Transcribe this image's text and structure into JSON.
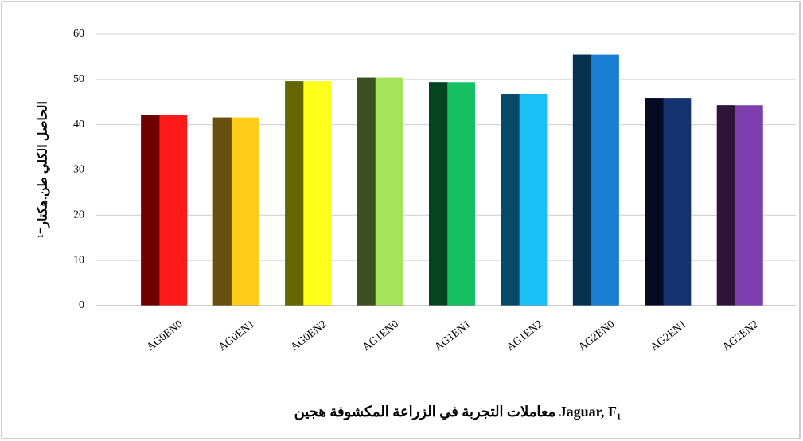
{
  "chart_data": {
    "type": "bar",
    "y_label": "الحاصل الكلي طن.هكتار⁻¹",
    "x_label": "معاملات التجربة في الزراعة المكشوفة هجين Jaguar, F₁",
    "categories": [
      "AG0EN0",
      "AG0EN1",
      "AG0EN2",
      "AG1EN0",
      "AG1EN1",
      "AG1EN2",
      "AG2EN0",
      "AG2EN1",
      "AG2EN2"
    ],
    "values": [
      42.1,
      41.6,
      49.6,
      50.4,
      49.4,
      46.8,
      55.5,
      45.9,
      44.3
    ],
    "colors": [
      "#ff1a1a",
      "#ffcc1a",
      "#ffff1a",
      "#a6e35c",
      "#14c060",
      "#19bff5",
      "#1a7fd4",
      "#14336f",
      "#7d3fad"
    ],
    "shade_colors": [
      "#6e0000",
      "#6a5010",
      "#666600",
      "#3a5020",
      "#05441e",
      "#054a66",
      "#05304f",
      "#050a20",
      "#2d1638"
    ],
    "ylim": [
      0,
      60
    ],
    "yticks": [
      0,
      10,
      20,
      30,
      40,
      50,
      60
    ],
    "grid": true
  }
}
